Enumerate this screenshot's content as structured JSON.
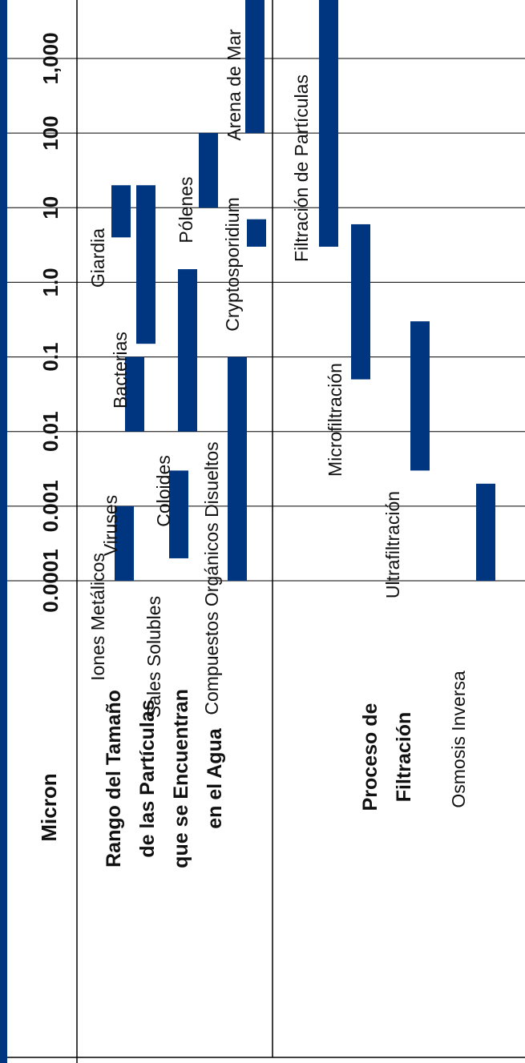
{
  "chart_data": {
    "type": "bar",
    "orientation": "horizontal-range",
    "scale": "log",
    "axis_label": "Micron",
    "ticks": [
      "0.0001",
      "0.001",
      "0.01",
      "0.1",
      "1.0",
      "10",
      "100",
      "1,000"
    ],
    "tick_values": [
      0.0001,
      0.001,
      0.01,
      0.1,
      1,
      10,
      100,
      1000
    ],
    "sections": [
      {
        "id": "particles",
        "title_lines": [
          "Rango del Tamaño",
          "de las Partículas",
          "que se Encuentran",
          "en el Agua"
        ]
      },
      {
        "id": "processes",
        "title_lines": [
          "Proceso de",
          "Filtración"
        ]
      }
    ],
    "series": [
      {
        "label": "Iones Metálicos",
        "section": "particles",
        "min": 0.0001,
        "max": 0.001
      },
      {
        "label": "Sales Solubles",
        "section": "particles",
        "min": 0.0002,
        "max": 0.003
      },
      {
        "label": "Compuestos  Orgánicos Disueltos",
        "section": "particles",
        "min": 0.0001,
        "max": 0.1
      },
      {
        "label": "Viruses",
        "section": "particles",
        "min": 0.01,
        "max": 0.1
      },
      {
        "label": "Coloides",
        "section": "particles",
        "min": 0.01,
        "max": 1.5
      },
      {
        "label": "Bacterias",
        "section": "particles",
        "min": 0.15,
        "max": 20
      },
      {
        "label": "Giardia",
        "section": "particles",
        "min": 4,
        "max": 20
      },
      {
        "label": "Cryptosporidium",
        "section": "particles",
        "min": 3,
        "max": 7
      },
      {
        "label": "Pólenes",
        "section": "particles",
        "min": 10,
        "max": 100
      },
      {
        "label": "Arena de Mar",
        "section": "particles",
        "min": 100,
        "max": 1000
      },
      {
        "label": "Filtración de Partículas",
        "section": "processes",
        "min": 3,
        "max": 1000
      },
      {
        "label": "Microfiltración",
        "section": "processes",
        "min": 0.05,
        "max": 6
      },
      {
        "label": "Ultrafiltración",
        "section": "processes",
        "min": 0.003,
        "max": 0.3
      },
      {
        "label": "Osmosis Inversa",
        "section": "processes",
        "min": 0.0001,
        "max": 0.002
      }
    ],
    "bar_color": "#003580",
    "frame_color": "#003580",
    "grid": true
  }
}
